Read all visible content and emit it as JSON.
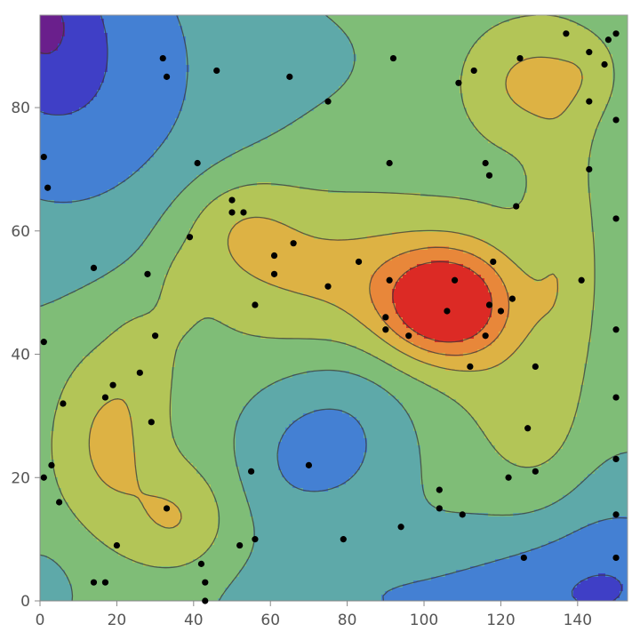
{
  "chart_data": {
    "type": "contour",
    "title": "",
    "xlabel": "",
    "ylabel": "",
    "xlim": [
      0,
      153
    ],
    "ylim": [
      0,
      95
    ],
    "x_ticks": [
      0,
      20,
      40,
      60,
      80,
      100,
      120,
      140
    ],
    "y_ticks": [
      0,
      20,
      40,
      60,
      80
    ],
    "x_tick_labels": [
      "0",
      "20",
      "40",
      "60",
      "80",
      "100",
      "120",
      "140"
    ],
    "y_tick_labels": [
      "0",
      "20",
      "40",
      "60",
      "80"
    ],
    "grid": false,
    "colors": {
      "levels": [
        "#6a1f8c",
        "#3f3fc6",
        "#4480d3",
        "#5ea9a9",
        "#7fbd77",
        "#b3c557",
        "#ddb244",
        "#e8873a",
        "#dc2a25"
      ],
      "points": "#000000",
      "contour_lines": "#3a3a3a"
    },
    "surface": {
      "base": 3.6,
      "bumps": [
        {
          "cx": 105,
          "cy": 48,
          "sx": 11,
          "sy": 6,
          "a": 4.6
        },
        {
          "cx": 78,
          "cy": 53,
          "sx": 28,
          "sy": 9,
          "a": 2.0
        },
        {
          "cx": 52,
          "cy": 61,
          "sx": 11,
          "sy": 6,
          "a": 1.3
        },
        {
          "cx": 118,
          "cy": 42,
          "sx": 11,
          "sy": 12,
          "a": 0.9
        },
        {
          "cx": 127,
          "cy": 84,
          "sx": 12,
          "sy": 7,
          "a": 1.9
        },
        {
          "cx": 143,
          "cy": 86,
          "sx": 5,
          "sy": 4,
          "a": 0.6
        },
        {
          "cx": 136,
          "cy": 56,
          "sx": 6,
          "sy": 18,
          "a": 1.2
        },
        {
          "cx": 128,
          "cy": 24,
          "sx": 9,
          "sy": 9,
          "a": 0.8
        },
        {
          "cx": 18,
          "cy": 26,
          "sx": 10,
          "sy": 11,
          "a": 2.0
        },
        {
          "cx": 36,
          "cy": 13,
          "sx": 9,
          "sy": 6,
          "a": 1.6
        },
        {
          "cx": 27,
          "cy": 40,
          "sx": 6,
          "sy": 6,
          "a": 0.7
        },
        {
          "cx": 36,
          "cy": 50,
          "sx": 4,
          "sy": 5,
          "a": 0.6
        },
        {
          "cx": 78,
          "cy": 26,
          "sx": 13,
          "sy": 10,
          "a": -1.6
        },
        {
          "cx": 62,
          "cy": 22,
          "sx": 9,
          "sy": 8,
          "a": -0.7
        },
        {
          "cx": 8,
          "cy": 86,
          "sx": 30,
          "sy": 22,
          "a": -2.3
        },
        {
          "cx": 0,
          "cy": 95,
          "sx": 9,
          "sy": 8,
          "a": -1.2
        },
        {
          "cx": 150,
          "cy": 3,
          "sx": 24,
          "sy": 12,
          "a": -2.0
        },
        {
          "cx": 95,
          "cy": 0,
          "sx": 34,
          "sy": 7,
          "a": -1.3
        },
        {
          "cx": 2,
          "cy": 3,
          "sx": 9,
          "sy": 7,
          "a": -0.6
        },
        {
          "cx": 78,
          "cy": 88,
          "sx": 18,
          "sy": 9,
          "a": -0.3
        }
      ],
      "levels": [
        0.5,
        1.3,
        2.2,
        3.2,
        4.2,
        5.3,
        6.3,
        7.4
      ]
    },
    "points": [
      [
        1,
        72
      ],
      [
        2,
        67
      ],
      [
        1,
        42
      ],
      [
        1,
        20
      ],
      [
        3,
        22
      ],
      [
        5,
        16
      ],
      [
        6,
        32
      ],
      [
        14,
        54
      ],
      [
        14,
        3
      ],
      [
        17,
        3
      ],
      [
        17,
        33
      ],
      [
        19,
        35
      ],
      [
        20,
        9
      ],
      [
        26,
        37
      ],
      [
        28,
        53
      ],
      [
        29,
        29
      ],
      [
        30,
        43
      ],
      [
        32,
        88
      ],
      [
        33,
        85
      ],
      [
        33,
        15
      ],
      [
        39,
        59
      ],
      [
        41,
        71
      ],
      [
        42,
        6
      ],
      [
        43,
        3
      ],
      [
        43,
        0
      ],
      [
        46,
        86
      ],
      [
        50,
        65
      ],
      [
        50,
        63
      ],
      [
        53,
        63
      ],
      [
        52,
        9
      ],
      [
        55,
        21
      ],
      [
        56,
        48
      ],
      [
        56,
        10
      ],
      [
        61,
        56
      ],
      [
        61,
        53
      ],
      [
        65,
        85
      ],
      [
        66,
        58
      ],
      [
        70,
        22
      ],
      [
        75,
        81
      ],
      [
        75,
        51
      ],
      [
        79,
        10
      ],
      [
        83,
        55
      ],
      [
        90,
        46
      ],
      [
        90,
        44
      ],
      [
        91,
        71
      ],
      [
        91,
        52
      ],
      [
        92,
        88
      ],
      [
        94,
        12
      ],
      [
        96,
        43
      ],
      [
        104,
        18
      ],
      [
        104,
        15
      ],
      [
        106,
        47
      ],
      [
        108,
        52
      ],
      [
        109,
        84
      ],
      [
        110,
        14
      ],
      [
        112,
        38
      ],
      [
        113,
        86
      ],
      [
        116,
        71
      ],
      [
        116,
        43
      ],
      [
        117,
        69
      ],
      [
        117,
        48
      ],
      [
        118,
        55
      ],
      [
        120,
        47
      ],
      [
        122,
        20
      ],
      [
        123,
        49
      ],
      [
        124,
        64
      ],
      [
        125,
        88
      ],
      [
        126,
        7
      ],
      [
        127,
        28
      ],
      [
        129,
        38
      ],
      [
        129,
        21
      ],
      [
        137,
        92
      ],
      [
        141,
        52
      ],
      [
        143,
        89
      ],
      [
        143,
        81
      ],
      [
        143,
        70
      ],
      [
        147,
        87
      ],
      [
        148,
        91
      ],
      [
        150,
        92
      ],
      [
        150,
        78
      ],
      [
        150,
        62
      ],
      [
        150,
        44
      ],
      [
        150,
        33
      ],
      [
        150,
        23
      ],
      [
        150,
        14
      ],
      [
        150,
        7
      ]
    ]
  }
}
